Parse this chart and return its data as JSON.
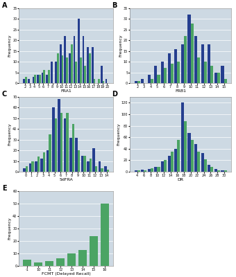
{
  "bg": "#cdd9e3",
  "blue": "#253e8f",
  "green": "#4ba464",
  "plots": [
    {
      "id": "A",
      "xlabel": "FRA1",
      "ylabel": "Frequency",
      "xlabels": [
        "2",
        "3",
        "4",
        "5",
        "6",
        "7",
        "8",
        "9",
        "10",
        "11",
        "12",
        "13",
        "14",
        "15",
        "16",
        "17",
        "18",
        "19",
        "20"
      ],
      "bvals": [
        2,
        2,
        3,
        4,
        5,
        4,
        10,
        10,
        18,
        22,
        14,
        22,
        30,
        22,
        17,
        17,
        0,
        8,
        2
      ],
      "gvals": [
        3,
        0,
        4,
        4,
        6,
        6,
        0,
        14,
        13,
        12,
        18,
        10,
        12,
        8,
        14,
        2,
        2,
        1,
        0
      ],
      "ylim": [
        0,
        35
      ],
      "yticks": [
        0,
        5,
        10,
        15,
        20,
        25,
        30,
        35
      ]
    },
    {
      "id": "B",
      "xlabel": "FRB1",
      "ylabel": "Frequency",
      "xlabels": [
        "2",
        "3",
        "4",
        "5",
        "6",
        "7",
        "8",
        "9",
        "10",
        "11",
        "12",
        "13",
        "14",
        "15"
      ],
      "bvals": [
        1,
        2,
        4,
        8,
        10,
        14,
        16,
        18,
        32,
        22,
        18,
        18,
        5,
        8
      ],
      "gvals": [
        1,
        0,
        2,
        4,
        7,
        9,
        10,
        22,
        28,
        12,
        10,
        8,
        5,
        2
      ],
      "ylim": [
        0,
        35
      ],
      "yticks": [
        0,
        5,
        10,
        15,
        20,
        25,
        30,
        35
      ]
    },
    {
      "id": "C",
      "xlabel": "SdFRA",
      "ylabel": "Frequency",
      "xlabels": [
        "0",
        "1",
        "2",
        "3",
        "4",
        "5",
        "6",
        "7",
        "8",
        "9",
        "10",
        "11",
        "12",
        "13",
        "14"
      ],
      "bvals": [
        3,
        8,
        10,
        12,
        20,
        60,
        68,
        50,
        32,
        32,
        15,
        10,
        22,
        10,
        5
      ],
      "gvals": [
        5,
        10,
        14,
        18,
        35,
        50,
        55,
        55,
        45,
        20,
        15,
        12,
        5,
        3,
        2
      ],
      "ylim": [
        0,
        70
      ],
      "yticks": [
        0,
        10,
        20,
        30,
        40,
        50,
        60,
        70
      ]
    },
    {
      "id": "D",
      "xlabel": "DR",
      "ylabel": "Frequency",
      "xlabels": [
        "4",
        "6",
        "8",
        "10",
        "12",
        "14",
        "16",
        "18",
        "20",
        "22",
        "24",
        "26",
        "28",
        "30"
      ],
      "bvals": [
        2,
        4,
        5,
        8,
        18,
        28,
        40,
        120,
        68,
        48,
        32,
        12,
        5,
        2
      ],
      "gvals": [
        2,
        3,
        6,
        8,
        20,
        35,
        55,
        88,
        55,
        35,
        22,
        8,
        3,
        2
      ],
      "ylim": [
        0,
        130
      ],
      "yticks": [
        0,
        20,
        40,
        60,
        80,
        100,
        120
      ]
    },
    {
      "id": "E",
      "xlabel": "FCMT (Delayed Recall)",
      "ylabel": "Frequency",
      "xlabels": [
        "-1",
        "10",
        "11",
        "12",
        "13",
        "14",
        "15",
        "16"
      ],
      "bvals": [],
      "gvals": [
        5,
        3,
        4,
        6,
        10,
        13,
        24,
        50
      ],
      "ylim": [
        0,
        60
      ],
      "yticks": [
        0,
        10,
        20,
        30,
        40,
        50,
        60
      ]
    }
  ]
}
